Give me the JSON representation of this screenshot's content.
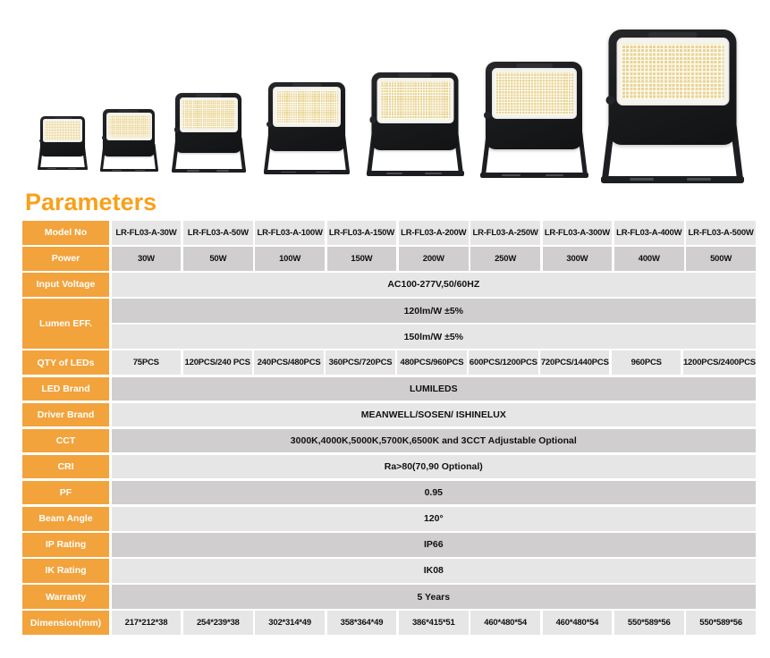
{
  "title": "Parameters",
  "icons": {
    "product": "floodlight-image"
  },
  "colors": {
    "accent_orange": "#f2a33c",
    "heading_orange": "#f9a01b",
    "row_light": "#e7e6e6",
    "row_dark": "#d0cece",
    "led_panel": "#e9d492"
  },
  "products": {
    "count": 7,
    "description": "floodlight product photos, small to large"
  },
  "table": {
    "rows": [
      {
        "label": "Model No",
        "type": "cells",
        "shade": "light",
        "values": [
          "LR-FL03-A-30W",
          "LR-FL03-A-50W",
          "LR-FL03-A-100W",
          "LR-FL03-A-150W",
          "LR-FL03-A-200W",
          "LR-FL03-A-250W",
          "LR-FL03-A-300W",
          "LR-FL03-A-400W",
          "LR-FL03-A-500W"
        ]
      },
      {
        "label": "Power",
        "type": "cells",
        "shade": "dark",
        "values": [
          "30W",
          "50W",
          "100W",
          "150W",
          "200W",
          "250W",
          "300W",
          "400W",
          "500W"
        ]
      },
      {
        "label": "Input Voltage",
        "type": "merged",
        "shade": "light",
        "value": "AC100-277V,50/60HZ"
      },
      {
        "label": "Lumen EFF.",
        "type": "double",
        "shades": [
          "dark",
          "light"
        ],
        "values": [
          "120lm/W ±5%",
          "150lm/W ±5%"
        ]
      },
      {
        "label": "QTY of LEDs",
        "type": "cells",
        "shade": "light",
        "values": [
          "75PCS",
          "120PCS/240 PCS",
          "240PCS/480PCS",
          "360PCS/720PCS",
          "480PCS/960PCS",
          "600PCS/1200PCS",
          "720PCS/1440PCS",
          "960PCS",
          "1200PCS/2400PCS"
        ]
      },
      {
        "label": "LED Brand",
        "type": "merged",
        "shade": "dark",
        "value": "LUMILEDS"
      },
      {
        "label": "Driver Brand",
        "type": "merged",
        "shade": "light",
        "value": "MEANWELL/SOSEN/ ISHINELUX"
      },
      {
        "label": "CCT",
        "type": "merged",
        "shade": "dark",
        "value": "3000K,4000K,5000K,5700K,6500K and 3CCT Adjustable Optional"
      },
      {
        "label": "CRI",
        "type": "merged",
        "shade": "light",
        "value": "Ra>80(70,90 Optional)"
      },
      {
        "label": "PF",
        "type": "merged",
        "shade": "dark",
        "value": "0.95"
      },
      {
        "label": "Beam Angle",
        "type": "merged",
        "shade": "light",
        "value": "120°"
      },
      {
        "label": "IP Rating",
        "type": "merged",
        "shade": "dark",
        "value": "IP66"
      },
      {
        "label": "IK Rating",
        "type": "merged",
        "shade": "light",
        "value": "IK08"
      },
      {
        "label": "Warranty",
        "type": "merged",
        "shade": "dark",
        "value": "5 Years"
      },
      {
        "label": "Dimension(mm)",
        "type": "cells",
        "shade": "light",
        "values": [
          "217*212*38",
          "254*239*38",
          "302*314*49",
          "358*364*49",
          "386*415*51",
          "460*480*54",
          "460*480*54",
          "550*589*56",
          "550*589*56"
        ]
      }
    ]
  }
}
